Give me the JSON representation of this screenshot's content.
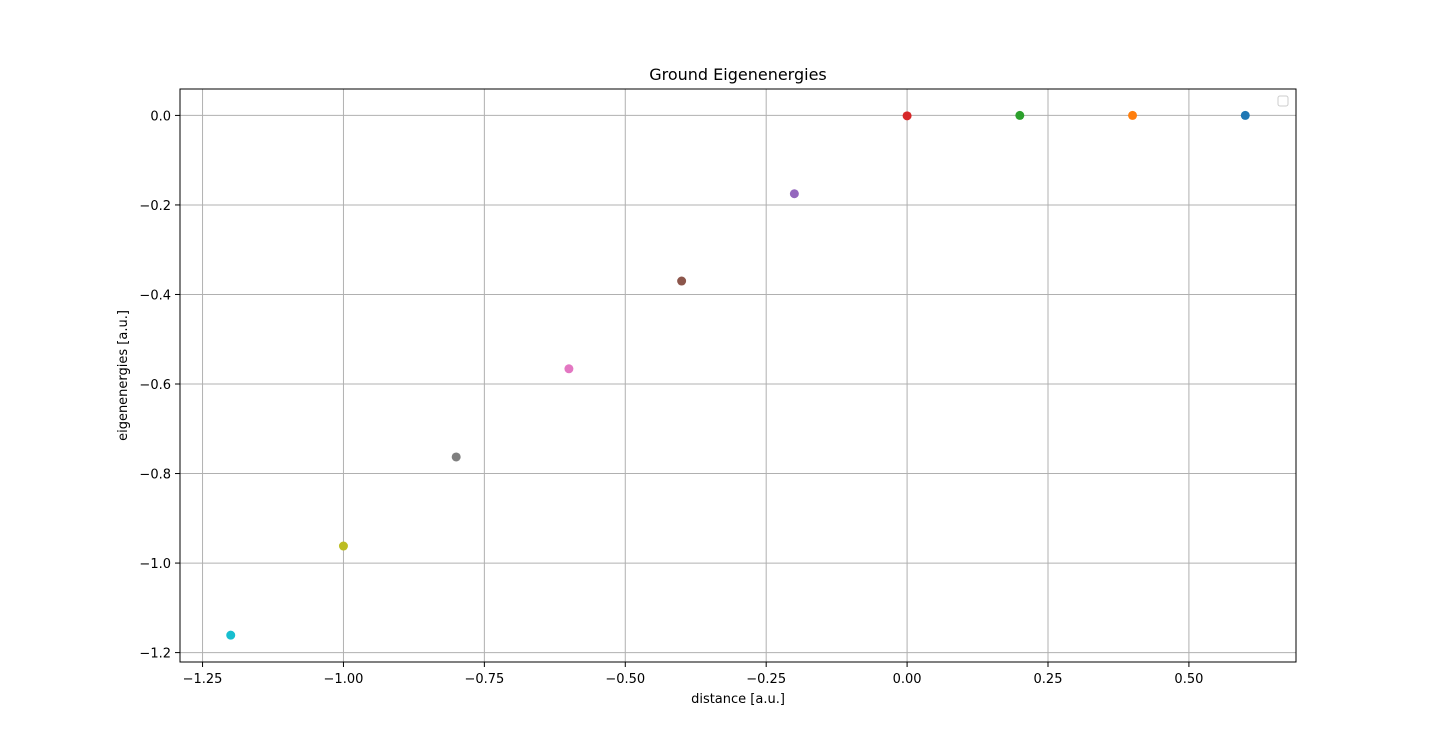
{
  "chart_data": {
    "type": "scatter",
    "title": "Ground Eigenenergies",
    "xlabel": "distance [a.u.]",
    "ylabel": "eigenenergies [a.u.]",
    "xlim": [
      -1.29,
      0.69
    ],
    "ylim": [
      -1.221,
      0.059
    ],
    "x_ticks": [
      -1.25,
      -1.0,
      -0.75,
      -0.5,
      -0.25,
      0.0,
      0.25,
      0.5
    ],
    "x_tick_labels": [
      "−1.25",
      "−1.00",
      "−0.75",
      "−0.50",
      "−0.25",
      "0.00",
      "0.25",
      "0.50"
    ],
    "y_ticks": [
      0.0,
      -0.2,
      -0.4,
      -0.6,
      -0.8,
      -1.0,
      -1.2
    ],
    "y_tick_labels": [
      "0.0",
      "−0.2",
      "−0.4",
      "−0.6",
      "−0.8",
      "−1.0",
      "−1.2"
    ],
    "grid": true,
    "legend": {
      "placement": "upper right",
      "entries": []
    },
    "points": [
      {
        "x": 0.6,
        "y": 0.0,
        "color": "#1f77b4"
      },
      {
        "x": 0.4,
        "y": 0.0,
        "color": "#ff7f0e"
      },
      {
        "x": 0.2,
        "y": 0.0,
        "color": "#2ca02c"
      },
      {
        "x": 0.0,
        "y": -0.001,
        "color": "#d62728"
      },
      {
        "x": -0.2,
        "y": -0.175,
        "color": "#9467bd"
      },
      {
        "x": -0.4,
        "y": -0.37,
        "color": "#8c564b"
      },
      {
        "x": -0.6,
        "y": -0.566,
        "color": "#e377c2"
      },
      {
        "x": -0.8,
        "y": -0.763,
        "color": "#7f7f7f"
      },
      {
        "x": -1.0,
        "y": -0.962,
        "color": "#bcbd22"
      },
      {
        "x": -1.2,
        "y": -1.161,
        "color": "#17becf"
      }
    ]
  }
}
